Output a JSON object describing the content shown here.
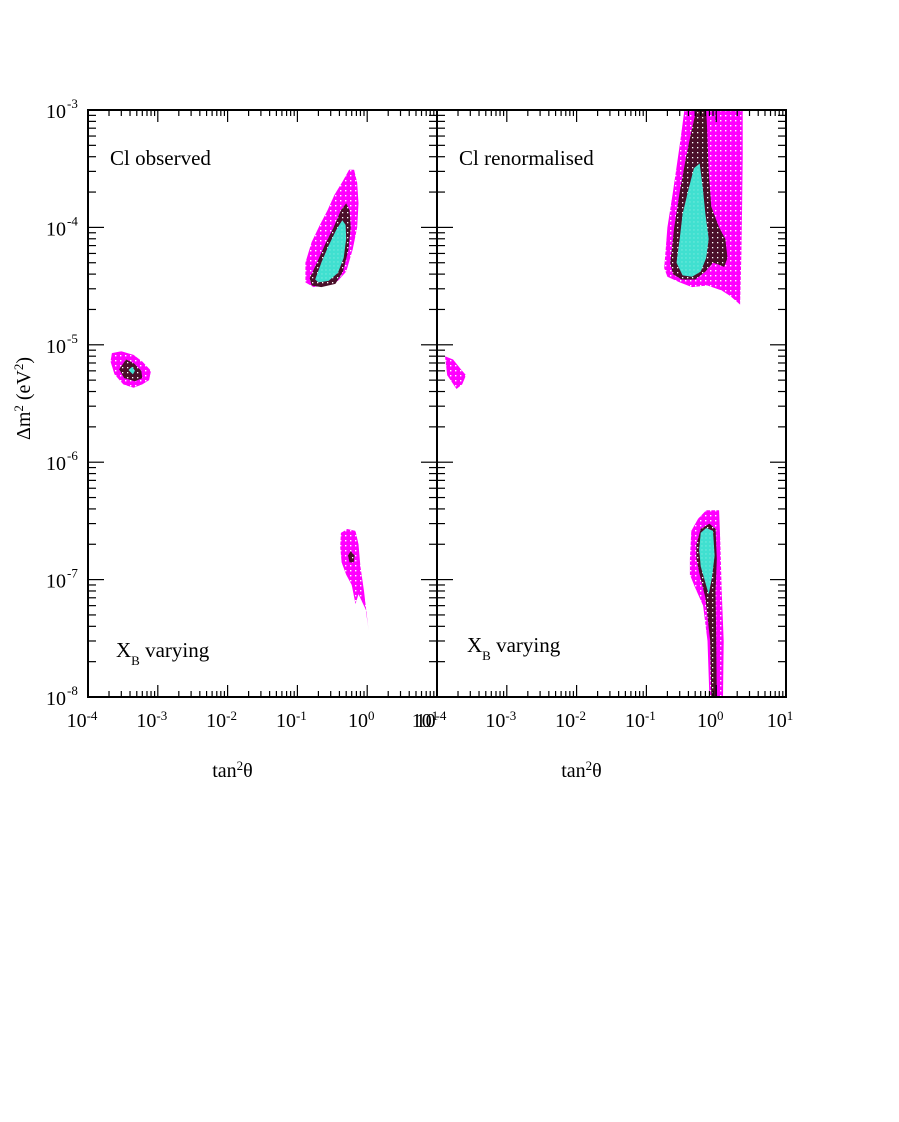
{
  "colors": {
    "region_outer": "#ff00ff",
    "region_middle": "#4a0f2a",
    "region_inner": "#40e0d0",
    "axis": "#000000",
    "background": "#ffffff"
  },
  "chart_data": [
    {
      "type": "contour",
      "panel_label": "Cl observed",
      "annotation": {
        "main": "X",
        "sub": "B",
        "rest": " varying"
      },
      "xlabel": {
        "main": "tan",
        "sup": "2",
        "rest": "θ"
      },
      "ylabel": {
        "prefix": "Δm",
        "sup1": "2",
        "unit_open": " (eV",
        "sup2": "2",
        "unit_close": ")"
      },
      "xscale": "log",
      "yscale": "log",
      "xlim": [
        0.0001,
        10
      ],
      "ylim": [
        1e-08,
        0.001
      ],
      "x_ticks": [
        {
          "base": "10",
          "exp": "-4"
        },
        {
          "base": "10",
          "exp": "-3"
        },
        {
          "base": "10",
          "exp": "-2"
        },
        {
          "base": "10",
          "exp": "-1"
        },
        {
          "base": "10",
          "exp": "0"
        },
        {
          "base": "10",
          "exp": "1"
        }
      ],
      "y_ticks": [
        {
          "base": "10",
          "exp": "-3"
        },
        {
          "base": "10",
          "exp": "-4"
        },
        {
          "base": "10",
          "exp": "-5"
        },
        {
          "base": "10",
          "exp": "-6"
        },
        {
          "base": "10",
          "exp": "-7"
        },
        {
          "base": "10",
          "exp": "-8"
        }
      ],
      "regions": [
        {
          "level": "outer",
          "polygons": [
            [
              [
                0.13,
                5e-05
              ],
              [
                0.16,
                7.5e-05
              ],
              [
                0.21,
                0.000105
              ],
              [
                0.27,
                0.00014
              ],
              [
                0.34,
                0.00019
              ],
              [
                0.45,
                0.00025
              ],
              [
                0.55,
                0.00031
              ],
              [
                0.65,
                0.00031
              ],
              [
                0.72,
                0.00024
              ],
              [
                0.75,
                0.00016
              ],
              [
                0.72,
                0.0001
              ],
              [
                0.62,
                6.5e-05
              ],
              [
                0.5,
                4.2e-05
              ],
              [
                0.38,
                3.5e-05
              ],
              [
                0.25,
                3.2e-05
              ],
              [
                0.17,
                3.1e-05
              ],
              [
                0.13,
                3.4e-05
              ]
            ],
            [
              [
                0.00021,
                7.2e-06
              ],
              [
                0.00022,
                8.5e-06
              ],
              [
                0.0003,
                8.8e-06
              ],
              [
                0.00045,
                8.2e-06
              ],
              [
                0.0006,
                7.2e-06
              ],
              [
                0.0008,
                6e-06
              ],
              [
                0.00075,
                5e-06
              ],
              [
                0.0006,
                4.6e-06
              ],
              [
                0.00045,
                4.3e-06
              ],
              [
                0.00032,
                4.6e-06
              ],
              [
                0.00024,
                5.6e-06
              ]
            ],
            [
              [
                0.42,
                2.5e-07
              ],
              [
                0.52,
                2.7e-07
              ],
              [
                0.68,
                2.6e-07
              ],
              [
                0.75,
                2e-07
              ],
              [
                0.8,
                1.3e-07
              ],
              [
                0.9,
                8e-08
              ],
              [
                1.02,
                4.2e-08
              ],
              [
                1.05,
                3.7e-08
              ],
              [
                0.95,
                5.6e-08
              ],
              [
                0.75,
                7.5e-08
              ],
              [
                0.68,
                6.2e-08
              ],
              [
                0.6,
                9e-08
              ],
              [
                0.5,
                1.1e-07
              ],
              [
                0.43,
                1.4e-07
              ],
              [
                0.41,
                1.9e-07
              ]
            ]
          ]
        },
        {
          "level": "middle",
          "polygons": [
            [
              [
                0.15,
                3.7e-05
              ],
              [
                0.19,
                5e-05
              ],
              [
                0.25,
                7.2e-05
              ],
              [
                0.33,
                0.0001
              ],
              [
                0.42,
                0.00014
              ],
              [
                0.5,
                0.00016
              ],
              [
                0.56,
                0.00014
              ],
              [
                0.58,
                0.0001
              ],
              [
                0.54,
                6.5e-05
              ],
              [
                0.45,
                4.2e-05
              ],
              [
                0.35,
                3.3e-05
              ],
              [
                0.22,
                3.1e-05
              ],
              [
                0.16,
                3.2e-05
              ]
            ],
            [
              [
                0.00028,
                6.2e-06
              ],
              [
                0.00035,
                7.5e-06
              ],
              [
                0.00045,
                7e-06
              ],
              [
                0.00058,
                6e-06
              ],
              [
                0.0006,
                5.2e-06
              ],
              [
                0.00047,
                4.9e-06
              ],
              [
                0.00033,
                5.2e-06
              ]
            ],
            [
              [
                0.53,
                1.6e-07
              ],
              [
                0.58,
                1.75e-07
              ],
              [
                0.66,
                1.6e-07
              ],
              [
                0.64,
                1.4e-07
              ],
              [
                0.56,
                1.4e-07
              ]
            ]
          ]
        },
        {
          "level": "inner",
          "polygons": [
            [
              [
                0.18,
                3.6e-05
              ],
              [
                0.22,
                5e-05
              ],
              [
                0.28,
                7e-05
              ],
              [
                0.36,
                9.5e-05
              ],
              [
                0.44,
                0.000115
              ],
              [
                0.49,
                0.000105
              ],
              [
                0.5,
                8e-05
              ],
              [
                0.46,
                5.5e-05
              ],
              [
                0.38,
                4.1e-05
              ],
              [
                0.28,
                3.5e-05
              ],
              [
                0.2,
                3.4e-05
              ]
            ],
            [
              [
                0.00038,
                6.1e-06
              ],
              [
                0.00043,
                6.5e-06
              ],
              [
                0.00047,
                6e-06
              ],
              [
                0.00044,
                5.6e-06
              ]
            ]
          ]
        }
      ]
    },
    {
      "type": "contour",
      "panel_label": "Cl renormalised",
      "annotation": {
        "main": "X",
        "sub": "B",
        "rest": " varying"
      },
      "xlabel": {
        "main": "tan",
        "sup": "2",
        "rest": "θ"
      },
      "xscale": "log",
      "yscale": "log",
      "xlim": [
        0.0001,
        10
      ],
      "ylim": [
        1e-08,
        0.001
      ],
      "x_ticks": [
        {
          "base": "10",
          "exp": "-4"
        },
        {
          "base": "10",
          "exp": "-3"
        },
        {
          "base": "10",
          "exp": "-2"
        },
        {
          "base": "10",
          "exp": "-1"
        },
        {
          "base": "10",
          "exp": "0"
        },
        {
          "base": "10",
          "exp": "1"
        }
      ],
      "regions": [
        {
          "level": "outer",
          "polygons": [
            [
              [
                0.18,
                4.5e-05
              ],
              [
                0.2,
                0.0001
              ],
              [
                0.24,
                0.0002
              ],
              [
                0.3,
                0.0005
              ],
              [
                0.35,
                0.001
              ],
              [
                2.4,
                0.001
              ],
              [
                2.4,
                0.0004
              ],
              [
                2.35,
                0.00015
              ],
              [
                2.3,
                6e-05
              ],
              [
                2.2,
                2.2e-05
              ],
              [
                1.6,
                2.6e-05
              ],
              [
                1.2,
                2.9e-05
              ],
              [
                0.75,
                3.2e-05
              ],
              [
                0.45,
                3.1e-05
              ],
              [
                0.3,
                3.4e-05
              ],
              [
                0.2,
                3.8e-05
              ]
            ],
            [
              [
                0.00013,
                8e-06
              ],
              [
                0.00017,
                7.5e-06
              ],
              [
                0.00022,
                6.2e-06
              ],
              [
                0.00026,
                5.5e-06
              ],
              [
                0.00023,
                4.6e-06
              ],
              [
                0.00019,
                4.2e-06
              ],
              [
                0.00014,
                5.5e-06
              ]
            ],
            [
              [
                0.42,
                1.5e-07
              ],
              [
                0.44,
                2.6e-07
              ],
              [
                0.55,
                3.3e-07
              ],
              [
                0.72,
                3.9e-07
              ],
              [
                1.1,
                3.9e-07
              ],
              [
                1.15,
                2e-07
              ],
              [
                1.2,
                8e-08
              ],
              [
                1.28,
                3e-08
              ],
              [
                1.25,
                1e-08
              ],
              [
                0.8,
                1e-08
              ],
              [
                0.75,
                3e-08
              ],
              [
                0.65,
                6e-08
              ],
              [
                0.5,
                8.5e-08
              ],
              [
                0.42,
                1.1e-07
              ]
            ]
          ]
        },
        {
          "level": "middle",
          "polygons": [
            [
              [
                0.22,
                5e-05
              ],
              [
                0.25,
                0.0001
              ],
              [
                0.3,
                0.0002
              ],
              [
                0.37,
                0.0004
              ],
              [
                0.45,
                0.0007
              ],
              [
                0.52,
                0.001
              ],
              [
                0.72,
                0.001
              ],
              [
                0.74,
                0.0007
              ],
              [
                0.78,
                0.0003
              ],
              [
                0.85,
                0.00015
              ],
              [
                1.1,
                0.0001
              ],
              [
                1.35,
                8e-05
              ],
              [
                1.45,
                5.5e-05
              ],
              [
                1.3,
                4.6e-05
              ],
              [
                1.1,
                4.8e-05
              ],
              [
                0.9,
                5e-05
              ],
              [
                0.7,
                4.2e-05
              ],
              [
                0.5,
                3.6e-05
              ],
              [
                0.32,
                3.6e-05
              ],
              [
                0.24,
                4e-05
              ]
            ],
            [
              [
                0.52,
                2e-07
              ],
              [
                0.6,
                2.7e-07
              ],
              [
                0.8,
                3e-07
              ],
              [
                0.98,
                2.7e-07
              ],
              [
                1.02,
                1.5e-07
              ],
              [
                0.98,
                8e-08
              ],
              [
                1.0,
                3e-08
              ],
              [
                1.02,
                1e-08
              ],
              [
                0.85,
                1e-08
              ],
              [
                0.82,
                3e-08
              ],
              [
                0.7,
                7e-08
              ],
              [
                0.58,
                1.1e-07
              ],
              [
                0.52,
                1.5e-07
              ]
            ]
          ]
        },
        {
          "level": "inner",
          "polygons": [
            [
              [
                0.27,
                5e-05
              ],
              [
                0.3,
                8e-05
              ],
              [
                0.33,
                0.00013
              ],
              [
                0.4,
                0.00021
              ],
              [
                0.48,
                0.00032
              ],
              [
                0.58,
                0.00035
              ],
              [
                0.64,
                0.00022
              ],
              [
                0.7,
                0.00013
              ],
              [
                0.78,
                8e-05
              ],
              [
                0.72,
                5.5e-05
              ],
              [
                0.6,
                4.2e-05
              ],
              [
                0.45,
                3.8e-05
              ],
              [
                0.33,
                3.9e-05
              ]
            ],
            [
              [
                0.57,
                1.8e-07
              ],
              [
                0.6,
                2.5e-07
              ],
              [
                0.72,
                2.75e-07
              ],
              [
                0.9,
                2.6e-07
              ],
              [
                0.95,
                1.6e-07
              ],
              [
                0.87,
                1.05e-07
              ],
              [
                0.78,
                7.5e-08
              ],
              [
                0.68,
                1e-07
              ],
              [
                0.6,
                1.3e-07
              ]
            ]
          ]
        }
      ]
    }
  ]
}
